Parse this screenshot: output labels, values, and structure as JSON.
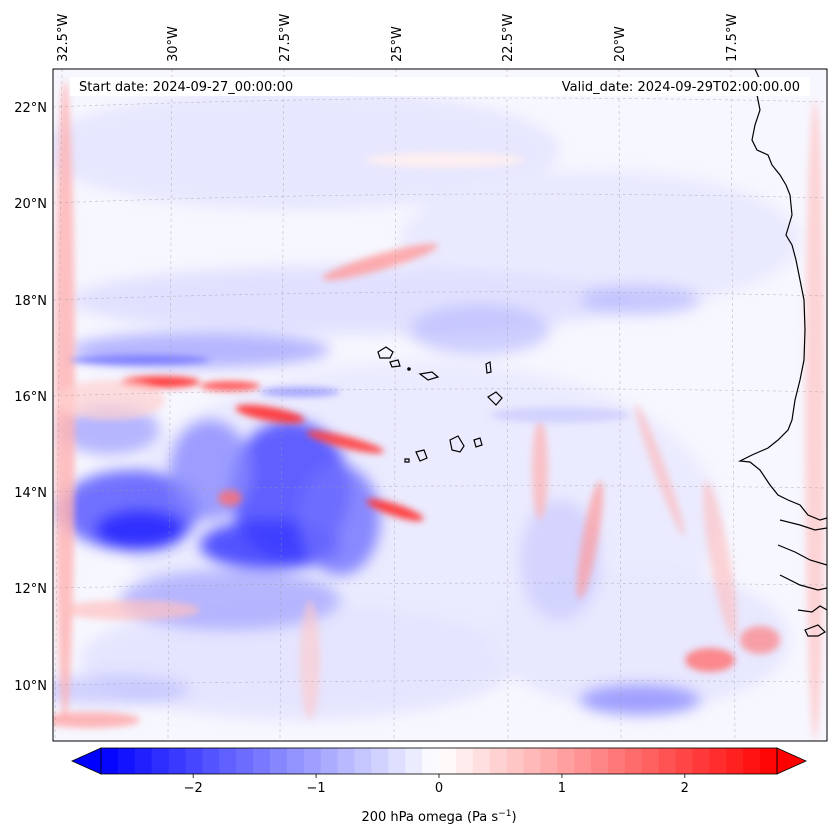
{
  "map": {
    "start_date_text": "Start date: 2024-09-27_00:00:00",
    "valid_date_text": "Valid_date: 2024-09-29T02:00:00.00",
    "lon_labels": [
      "32.5°W",
      "30°W",
      "27.5°W",
      "25°W",
      "22.5°W",
      "20°W",
      "17.5°W"
    ],
    "lat_labels": [
      "22°N",
      "20°N",
      "18°N",
      "16°N",
      "14°N",
      "12°N",
      "10°N"
    ],
    "field": "200 hPa omega",
    "colormap": "bwr",
    "colors": {
      "negative": "#0000ff",
      "neutral": "#ffffff",
      "positive": "#ff0000",
      "coastline": "#000000"
    }
  },
  "colorbar": {
    "label_main": "200 hPa omega (Pa s",
    "label_exp": "−1",
    "label_close": ")",
    "ticks": [
      "−2",
      "−1",
      "0",
      "1",
      "2"
    ],
    "tick_values": [
      -2,
      -1,
      0,
      1,
      2
    ],
    "range": [
      -2.75,
      2.75
    ],
    "extend": "both"
  }
}
